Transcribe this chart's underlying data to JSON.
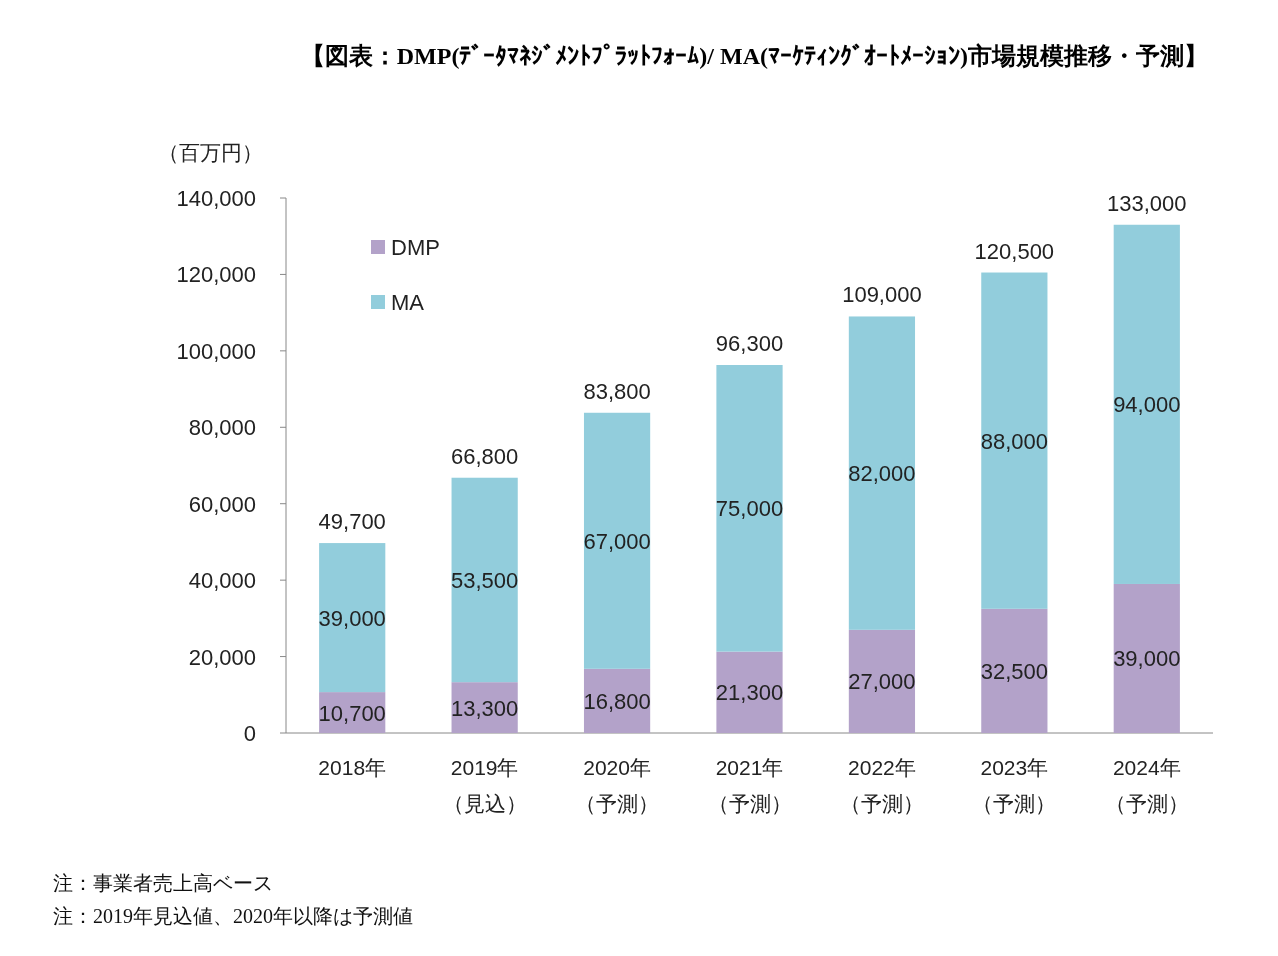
{
  "chart_data": {
    "type": "bar",
    "title": "【図表：DMP(ﾃﾞｰﾀﾏﾈｼﾞﾒﾝﾄﾌﾟﾗｯﾄﾌｫｰﾑ)/ MA(ﾏｰｹﾃｨﾝｸﾞｵｰﾄﾒｰｼｮﾝ)市場規模推移・予測】",
    "ylabel": "（百万円）",
    "categories": [
      "2018年",
      "2019年（見込）",
      "2020年（予測）",
      "2021年（予測）",
      "2022年（予測）",
      "2023年（予測）",
      "2024年（予測）"
    ],
    "series": [
      {
        "name": "DMP",
        "color": "#b3a2c9",
        "values": [
          10700,
          13300,
          16800,
          21300,
          27000,
          32500,
          39000
        ],
        "value_labels": [
          "10,700",
          "13,300",
          "16,800",
          "21,300",
          "27,000",
          "32,500",
          "39,000"
        ]
      },
      {
        "name": "MA",
        "color": "#92cddc",
        "values": [
          39000,
          53500,
          67000,
          75000,
          82000,
          88000,
          94000
        ],
        "value_labels": [
          "39,000",
          "53,500",
          "67,000",
          "75,000",
          "82,000",
          "88,000",
          "94,000"
        ]
      }
    ],
    "stacked": true,
    "totals": [
      "49,700",
      "66,800",
      "83,800",
      "96,300",
      "109,000",
      "120,500",
      "133,000"
    ],
    "ylim": [
      0,
      140000
    ],
    "yticks": [
      {
        "value": 0,
        "label": "0"
      },
      {
        "value": 20000,
        "label": "20,000"
      },
      {
        "value": 40000,
        "label": "40,000"
      },
      {
        "value": 60000,
        "label": "60,000"
      },
      {
        "value": 80000,
        "label": "80,000"
      },
      {
        "value": 100000,
        "label": "100,000"
      },
      {
        "value": 120000,
        "label": "120,000"
      },
      {
        "value": 140000,
        "label": "140,000"
      }
    ],
    "grid": false,
    "legend": "top left",
    "annotations": [
      "注：事業者売上高ベース",
      "注：2019年見込値、2020年以降は予測値"
    ]
  }
}
